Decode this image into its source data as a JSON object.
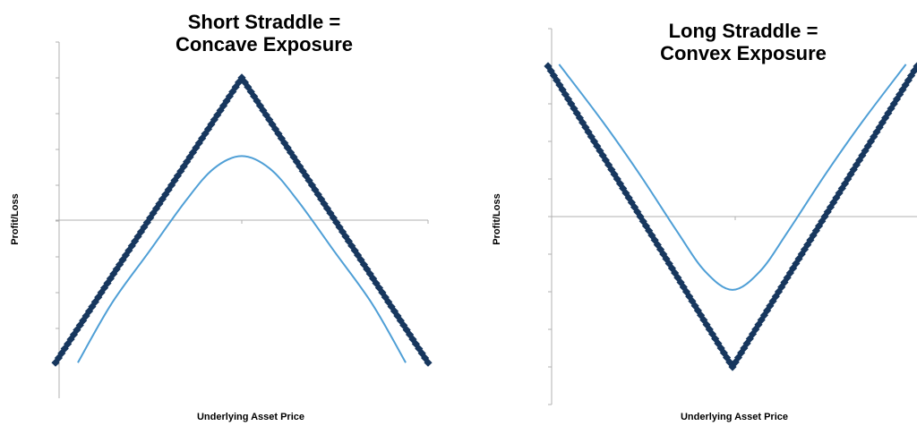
{
  "chart_data": [
    {
      "type": "line",
      "title": "Short Straddle = Concave Exposure",
      "title_lines": [
        "Short Straddle =",
        "Concave Exposure"
      ],
      "xlabel": "Underlying Asset Price",
      "ylabel": "Profit/Loss",
      "x_ticks": [],
      "y_ticks": [],
      "xlim": [
        -1,
        1
      ],
      "ylim": [
        -5,
        5
      ],
      "series": [
        {
          "style": "diamond-markers",
          "color": "#17375e",
          "x": [
            -1,
            0,
            1
          ],
          "y": [
            -4,
            4,
            -4
          ]
        },
        {
          "style": "smooth-line",
          "color": "#4f9fd6",
          "x": [
            -0.88,
            -0.7,
            -0.5,
            -0.3,
            -0.15,
            0,
            0.15,
            0.3,
            0.5,
            0.7,
            0.88
          ],
          "y": [
            -4,
            -2.35,
            -0.9,
            0.55,
            1.45,
            1.8,
            1.45,
            0.55,
            -0.9,
            -2.35,
            -4
          ]
        }
      ]
    },
    {
      "type": "line",
      "title": "Long Straddle = Convex Exposure",
      "title_lines": [
        "Long Straddle =",
        "Convex Exposure"
      ],
      "xlabel": "Underlying Asset Price",
      "ylabel": "Profit/Loss",
      "x_ticks": [],
      "y_ticks": [],
      "xlim": [
        -1,
        1
      ],
      "ylim": [
        -5,
        5
      ],
      "series": [
        {
          "style": "diamond-markers",
          "color": "#17375e",
          "x": [
            -1,
            0,
            1
          ],
          "y": [
            4,
            -4,
            4
          ]
        },
        {
          "style": "smooth-line",
          "color": "#4f9fd6",
          "x": [
            -0.94,
            -0.7,
            -0.5,
            -0.3,
            -0.15,
            0,
            0.15,
            0.3,
            0.5,
            0.7,
            0.94
          ],
          "y": [
            4.05,
            2.5,
            1.1,
            -0.4,
            -1.45,
            -1.95,
            -1.45,
            -0.4,
            1.1,
            2.5,
            4.05
          ]
        }
      ]
    }
  ]
}
